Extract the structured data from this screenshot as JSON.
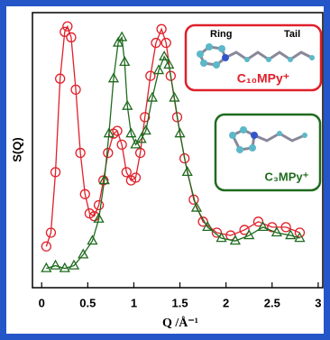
{
  "chart_data": {
    "type": "line",
    "xlabel": "Q /Å⁻¹",
    "ylabel": "S(Q)",
    "xlim": [
      -0.1,
      3.05
    ],
    "xticks": [
      0,
      0.5,
      1,
      1.5,
      2,
      2.5,
      3
    ],
    "ylim": [
      0,
      1
    ],
    "annotations": [
      "Ring",
      "Tail"
    ],
    "series": [
      {
        "name": "C₁₀MPy⁺",
        "color": "#e0202a",
        "marker": "circle",
        "x": [
          0.05,
          0.1,
          0.15,
          0.2,
          0.25,
          0.28,
          0.32,
          0.37,
          0.42,
          0.47,
          0.52,
          0.57,
          0.62,
          0.67,
          0.72,
          0.78,
          0.82,
          0.87,
          0.92,
          0.97,
          1.02,
          1.07,
          1.12,
          1.18,
          1.24,
          1.3,
          1.35,
          1.4,
          1.47,
          1.55,
          1.65,
          1.75,
          1.9,
          2.05,
          2.2,
          2.35,
          2.5,
          2.65,
          2.8
        ],
        "values": [
          0.15,
          0.2,
          0.42,
          0.76,
          0.93,
          0.95,
          0.91,
          0.72,
          0.49,
          0.34,
          0.27,
          0.26,
          0.3,
          0.39,
          0.49,
          0.56,
          0.57,
          0.52,
          0.42,
          0.39,
          0.4,
          0.49,
          0.62,
          0.77,
          0.89,
          0.94,
          0.89,
          0.77,
          0.62,
          0.47,
          0.32,
          0.24,
          0.2,
          0.19,
          0.21,
          0.24,
          0.22,
          0.22,
          0.2
        ]
      },
      {
        "name": "C₃MPy⁺",
        "color": "#1f6b1f",
        "marker": "triangle",
        "x": [
          0.05,
          0.15,
          0.25,
          0.35,
          0.45,
          0.55,
          0.62,
          0.68,
          0.73,
          0.78,
          0.83,
          0.87,
          0.9,
          0.93,
          0.97,
          1.02,
          1.08,
          1.13,
          1.2,
          1.27,
          1.33,
          1.38,
          1.44,
          1.5,
          1.58,
          1.68,
          1.8,
          1.95,
          2.1,
          2.25,
          2.4,
          2.55,
          2.7,
          2.8
        ],
        "values": [
          0.07,
          0.08,
          0.07,
          0.08,
          0.12,
          0.17,
          0.25,
          0.39,
          0.56,
          0.76,
          0.89,
          0.91,
          0.82,
          0.66,
          0.56,
          0.52,
          0.54,
          0.57,
          0.69,
          0.79,
          0.84,
          0.81,
          0.69,
          0.56,
          0.42,
          0.29,
          0.22,
          0.18,
          0.17,
          0.19,
          0.22,
          0.2,
          0.19,
          0.18
        ]
      }
    ]
  }
}
